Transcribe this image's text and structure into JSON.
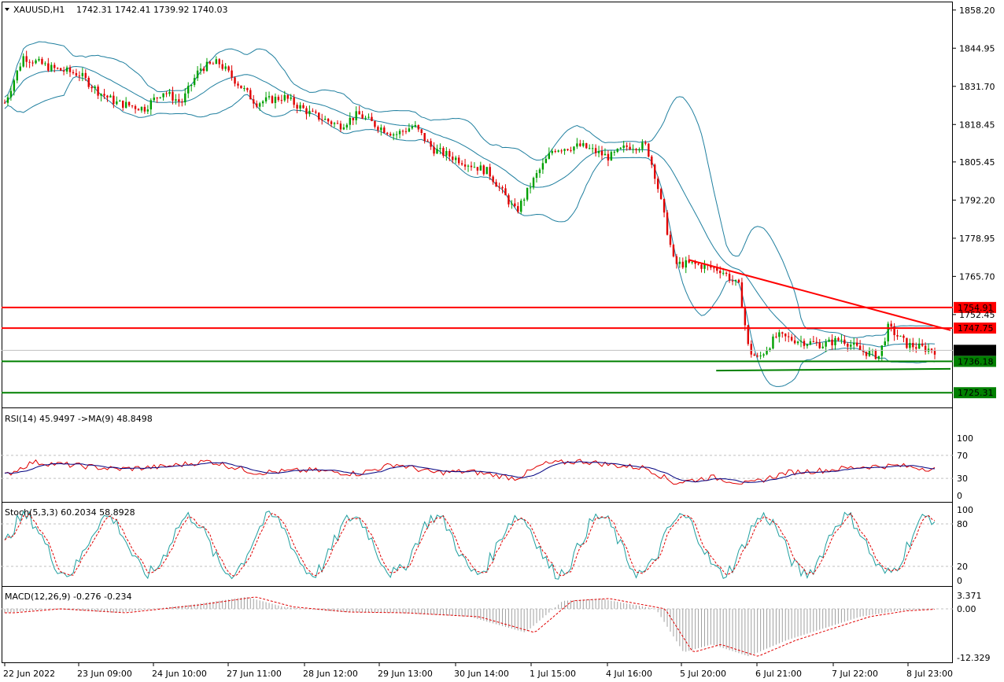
{
  "chart_data": {
    "type": "candlestick",
    "symbol_header": "XAUUSD,H1",
    "ohlc": {
      "open": "1742.31",
      "high": "1742.41",
      "low": "1739.92",
      "close": "1740.03"
    },
    "price_axis": {
      "ticks": [
        "1858.20",
        "1844.95",
        "1831.70",
        "1818.45",
        "1805.45",
        "1792.20",
        "1778.95",
        "1765.70",
        "1752.45"
      ],
      "tick_values": [
        1858.2,
        1844.95,
        1831.7,
        1818.45,
        1805.45,
        1792.2,
        1778.95,
        1765.7,
        1752.45
      ],
      "range": [
        1721.0,
        1859.5
      ]
    },
    "time_axis": [
      "22 Jun 2022",
      "23 Jun 09:00",
      "24 Jun 10:00",
      "27 Jun 11:00",
      "28 Jun 12:00",
      "29 Jun 13:00",
      "30 Jun 14:00",
      "1 Jul 15:00",
      "4 Jul 16:00",
      "5 Jul 20:00",
      "6 Jul 21:00",
      "7 Jul 22:00",
      "8 Jul 23:00"
    ],
    "levels": [
      {
        "label": "1754.91",
        "value": 1754.91,
        "color": "#ff0000"
      },
      {
        "label": "1747.75",
        "value": 1747.75,
        "color": "#ff0000"
      },
      {
        "label": "1736.18",
        "value": 1736.18,
        "color": "#008000"
      },
      {
        "label": "1725.31",
        "value": 1725.31,
        "color": "#008000"
      }
    ],
    "current_price": {
      "label": "1740.03",
      "value": 1740.03
    },
    "trendlines": [
      {
        "color": "#ff0000",
        "from": {
          "bar": 0.735,
          "value": 1771.5
        },
        "to": {
          "bar": 1.0,
          "value": 1747.0
        }
      },
      {
        "color": "#008000",
        "from": {
          "bar": 0.765,
          "value": 1733.0
        },
        "to": {
          "bar": 1.0,
          "value": 1733.6
        }
      }
    ],
    "price_waypoints": [
      [
        0,
        1826
      ],
      [
        0.02,
        1842
      ],
      [
        0.05,
        1838
      ],
      [
        0.08,
        1836
      ],
      [
        0.1,
        1830
      ],
      [
        0.12,
        1826
      ],
      [
        0.15,
        1824
      ],
      [
        0.17,
        1830
      ],
      [
        0.19,
        1826
      ],
      [
        0.21,
        1838
      ],
      [
        0.23,
        1840
      ],
      [
        0.25,
        1833
      ],
      [
        0.27,
        1826
      ],
      [
        0.3,
        1828
      ],
      [
        0.33,
        1822
      ],
      [
        0.36,
        1818
      ],
      [
        0.38,
        1822
      ],
      [
        0.4,
        1818
      ],
      [
        0.42,
        1815
      ],
      [
        0.44,
        1818
      ],
      [
        0.46,
        1810
      ],
      [
        0.49,
        1806
      ],
      [
        0.52,
        1802
      ],
      [
        0.55,
        1788
      ],
      [
        0.57,
        1800
      ],
      [
        0.59,
        1810
      ],
      [
        0.62,
        1811
      ],
      [
        0.65,
        1807
      ],
      [
        0.67,
        1811
      ],
      [
        0.69,
        1811
      ],
      [
        0.7,
        1800
      ],
      [
        0.72,
        1770
      ],
      [
        0.74,
        1770
      ],
      [
        0.77,
        1768
      ],
      [
        0.79,
        1762
      ],
      [
        0.8,
        1740
      ],
      [
        0.81,
        1737
      ],
      [
        0.83,
        1745
      ],
      [
        0.86,
        1743
      ],
      [
        0.88,
        1742
      ],
      [
        0.9,
        1744
      ],
      [
        0.92,
        1740
      ],
      [
        0.94,
        1738
      ],
      [
        0.95,
        1748
      ],
      [
        0.97,
        1742
      ],
      [
        1.0,
        1740
      ]
    ],
    "indicators": {
      "rsi": {
        "label": "RSI(14) 45.9497  ->MA(9) 48.8498",
        "levels": [
          "100",
          "70",
          "30",
          "0"
        ],
        "level_values": [
          100,
          70,
          30,
          0
        ],
        "waypoints": [
          [
            0,
            35
          ],
          [
            0.03,
            58
          ],
          [
            0.08,
            52
          ],
          [
            0.12,
            46
          ],
          [
            0.17,
            50
          ],
          [
            0.22,
            60
          ],
          [
            0.27,
            40
          ],
          [
            0.33,
            44
          ],
          [
            0.38,
            38
          ],
          [
            0.42,
            55
          ],
          [
            0.46,
            40
          ],
          [
            0.5,
            42
          ],
          [
            0.55,
            30
          ],
          [
            0.58,
            55
          ],
          [
            0.62,
            60
          ],
          [
            0.66,
            52
          ],
          [
            0.69,
            48
          ],
          [
            0.72,
            22
          ],
          [
            0.76,
            32
          ],
          [
            0.8,
            20
          ],
          [
            0.84,
            40
          ],
          [
            0.88,
            44
          ],
          [
            0.92,
            50
          ],
          [
            0.96,
            52
          ],
          [
            1.0,
            46
          ]
        ]
      },
      "stoch": {
        "label": "Stoch(5,3,3) 60.2034 58.8928",
        "levels": [
          "100",
          "80",
          "20",
          "0"
        ],
        "level_values": [
          100,
          80,
          20,
          0
        ]
      },
      "macd": {
        "label": "MACD(12,26,9) -0.276 -0.234",
        "levels": [
          "3.371",
          "0.00",
          "-12.329"
        ],
        "level_values": [
          3.371,
          0,
          -12.329
        ],
        "waypoints": [
          [
            0,
            -1
          ],
          [
            0.05,
            0
          ],
          [
            0.12,
            -1
          ],
          [
            0.2,
            1
          ],
          [
            0.26,
            3
          ],
          [
            0.3,
            0.5
          ],
          [
            0.36,
            -0.8
          ],
          [
            0.42,
            -1
          ],
          [
            0.5,
            -2
          ],
          [
            0.56,
            -6
          ],
          [
            0.6,
            2
          ],
          [
            0.64,
            2.6
          ],
          [
            0.7,
            0
          ],
          [
            0.73,
            -11
          ],
          [
            0.76,
            -9
          ],
          [
            0.8,
            -12
          ],
          [
            0.84,
            -8
          ],
          [
            0.88,
            -5
          ],
          [
            0.92,
            -2
          ],
          [
            0.96,
            -0.5
          ],
          [
            1.0,
            0
          ]
        ]
      }
    }
  }
}
